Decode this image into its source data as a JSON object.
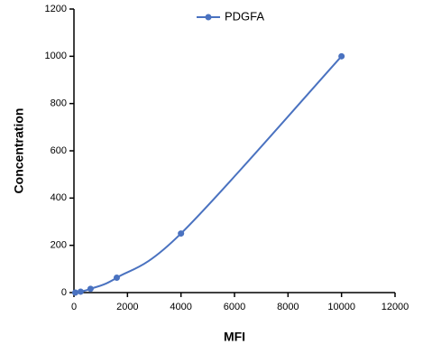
{
  "chart_data": {
    "type": "line",
    "x_label": "MFI",
    "y_label": "Concentration",
    "series": [
      {
        "name": "PDGFA",
        "color": "#4a72c0",
        "x": [
          50,
          250,
          620,
          1600,
          4000,
          10000
        ],
        "values": [
          0,
          4,
          16,
          63,
          250,
          1000
        ]
      }
    ],
    "xlim": [
      0,
      12000
    ],
    "xticks": [
      0,
      2000,
      4000,
      6000,
      8000,
      10000,
      12000
    ],
    "ylim": [
      0,
      1200
    ],
    "yticks": [
      0,
      200,
      400,
      600,
      800,
      1000,
      1200
    ],
    "grid": false,
    "legend": "top"
  }
}
